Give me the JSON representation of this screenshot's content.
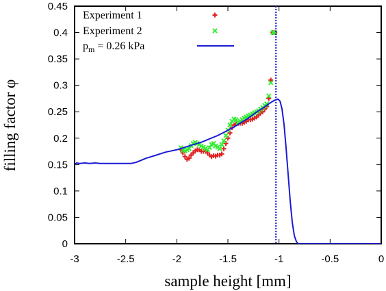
{
  "chart_data": {
    "type": "scatter",
    "title": "",
    "xlabel": "sample height [mm]",
    "ylabel": "filling factor φ",
    "xlim": [
      -3,
      0
    ],
    "ylim": [
      0,
      0.45
    ],
    "xticks": [
      -3,
      -2.5,
      -2,
      -1.5,
      -1,
      -0.5,
      0
    ],
    "xtick_labels": [
      "-3",
      "-2.5",
      "-2",
      "-1.5",
      "-1",
      "-0.5",
      "0"
    ],
    "yticks": [
      0,
      0.05,
      0.1,
      0.15,
      0.2,
      0.25,
      0.3,
      0.35,
      0.4,
      0.45
    ],
    "ytick_labels": [
      "0",
      "0.05",
      "0.1",
      "0.15",
      "0.2",
      "0.25",
      "0.3",
      "0.35",
      "0.4",
      "0.45"
    ],
    "grid": false,
    "legend_position": "top-left",
    "series": [
      {
        "name": "Experiment 1",
        "kind": "scatter",
        "marker": "plus",
        "color": "#e02020",
        "x": [
          -1.96,
          -1.94,
          -1.92,
          -1.9,
          -1.88,
          -1.86,
          -1.84,
          -1.82,
          -1.8,
          -1.78,
          -1.76,
          -1.74,
          -1.72,
          -1.7,
          -1.68,
          -1.66,
          -1.64,
          -1.62,
          -1.6,
          -1.58,
          -1.56,
          -1.54,
          -1.52,
          -1.5,
          -1.48,
          -1.46,
          -1.44,
          -1.42,
          -1.4,
          -1.38,
          -1.36,
          -1.34,
          -1.32,
          -1.3,
          -1.28,
          -1.26,
          -1.24,
          -1.22,
          -1.2,
          -1.18,
          -1.16,
          -1.14,
          -1.12,
          -1.1,
          -1.08,
          -1.06,
          -1.04
        ],
        "y": [
          0.178,
          0.172,
          0.165,
          0.16,
          0.162,
          0.168,
          0.172,
          0.176,
          0.178,
          0.178,
          0.175,
          0.175,
          0.175,
          0.172,
          0.168,
          0.165,
          0.167,
          0.166,
          0.168,
          0.168,
          0.17,
          0.18,
          0.19,
          0.2,
          0.21,
          0.22,
          0.225,
          0.227,
          0.228,
          0.228,
          0.228,
          0.23,
          0.232,
          0.235,
          0.235,
          0.236,
          0.238,
          0.24,
          0.244,
          0.248,
          0.25,
          0.255,
          0.26,
          0.275,
          0.31,
          0.4,
          0.4
        ]
      },
      {
        "name": "Experiment 2",
        "kind": "scatter",
        "marker": "cross",
        "color": "#33ee33",
        "x": [
          -1.96,
          -1.94,
          -1.92,
          -1.9,
          -1.88,
          -1.86,
          -1.84,
          -1.82,
          -1.8,
          -1.78,
          -1.76,
          -1.74,
          -1.72,
          -1.7,
          -1.68,
          -1.66,
          -1.64,
          -1.62,
          -1.6,
          -1.58,
          -1.56,
          -1.54,
          -1.52,
          -1.5,
          -1.48,
          -1.46,
          -1.44,
          -1.42,
          -1.4,
          -1.38,
          -1.36,
          -1.34,
          -1.32,
          -1.3,
          -1.28,
          -1.26,
          -1.24,
          -1.22,
          -1.2,
          -1.18,
          -1.16,
          -1.14,
          -1.12,
          -1.1,
          -1.08,
          -1.06,
          -1.04
        ],
        "y": [
          0.182,
          0.178,
          0.176,
          0.178,
          0.18,
          0.186,
          0.19,
          0.192,
          0.19,
          0.188,
          0.185,
          0.183,
          0.18,
          0.178,
          0.182,
          0.188,
          0.19,
          0.185,
          0.183,
          0.18,
          0.188,
          0.195,
          0.205,
          0.215,
          0.225,
          0.232,
          0.236,
          0.235,
          0.23,
          0.232,
          0.235,
          0.238,
          0.24,
          0.242,
          0.244,
          0.246,
          0.248,
          0.25,
          0.252,
          0.255,
          0.258,
          0.262,
          0.265,
          0.28,
          0.305,
          0.4,
          0.4
        ]
      },
      {
        "name": "p_m = 0.26 kPa",
        "kind": "line",
        "color": "#1a1ad6",
        "x": [
          -3.0,
          -2.98,
          -2.95,
          -2.9,
          -2.85,
          -2.8,
          -2.75,
          -2.7,
          -2.65,
          -2.6,
          -2.55,
          -2.5,
          -2.45,
          -2.4,
          -2.35,
          -2.3,
          -2.25,
          -2.2,
          -2.15,
          -2.1,
          -2.05,
          -2.0,
          -1.95,
          -1.9,
          -1.85,
          -1.8,
          -1.75,
          -1.7,
          -1.65,
          -1.6,
          -1.55,
          -1.5,
          -1.45,
          -1.4,
          -1.35,
          -1.3,
          -1.25,
          -1.2,
          -1.15,
          -1.1,
          -1.06,
          -1.03,
          -1.01,
          -0.99,
          -0.97,
          -0.95,
          -0.93,
          -0.91,
          -0.89,
          -0.87,
          -0.85,
          -0.83,
          -0.81,
          -0.8,
          -0.78,
          0.0
        ],
        "y": [
          0.15,
          0.153,
          0.152,
          0.153,
          0.152,
          0.153,
          0.152,
          0.152,
          0.152,
          0.152,
          0.152,
          0.152,
          0.152,
          0.154,
          0.158,
          0.162,
          0.165,
          0.168,
          0.171,
          0.174,
          0.176,
          0.178,
          0.181,
          0.184,
          0.187,
          0.19,
          0.193,
          0.197,
          0.201,
          0.205,
          0.21,
          0.215,
          0.22,
          0.226,
          0.232,
          0.238,
          0.245,
          0.252,
          0.258,
          0.265,
          0.27,
          0.273,
          0.274,
          0.27,
          0.255,
          0.225,
          0.18,
          0.13,
          0.08,
          0.04,
          0.015,
          0.004,
          0.0,
          0.0,
          0.0,
          0.0
        ]
      }
    ],
    "vertical_line": {
      "x": -1.03,
      "style": "dotted",
      "color": "#1a1ad6"
    }
  }
}
